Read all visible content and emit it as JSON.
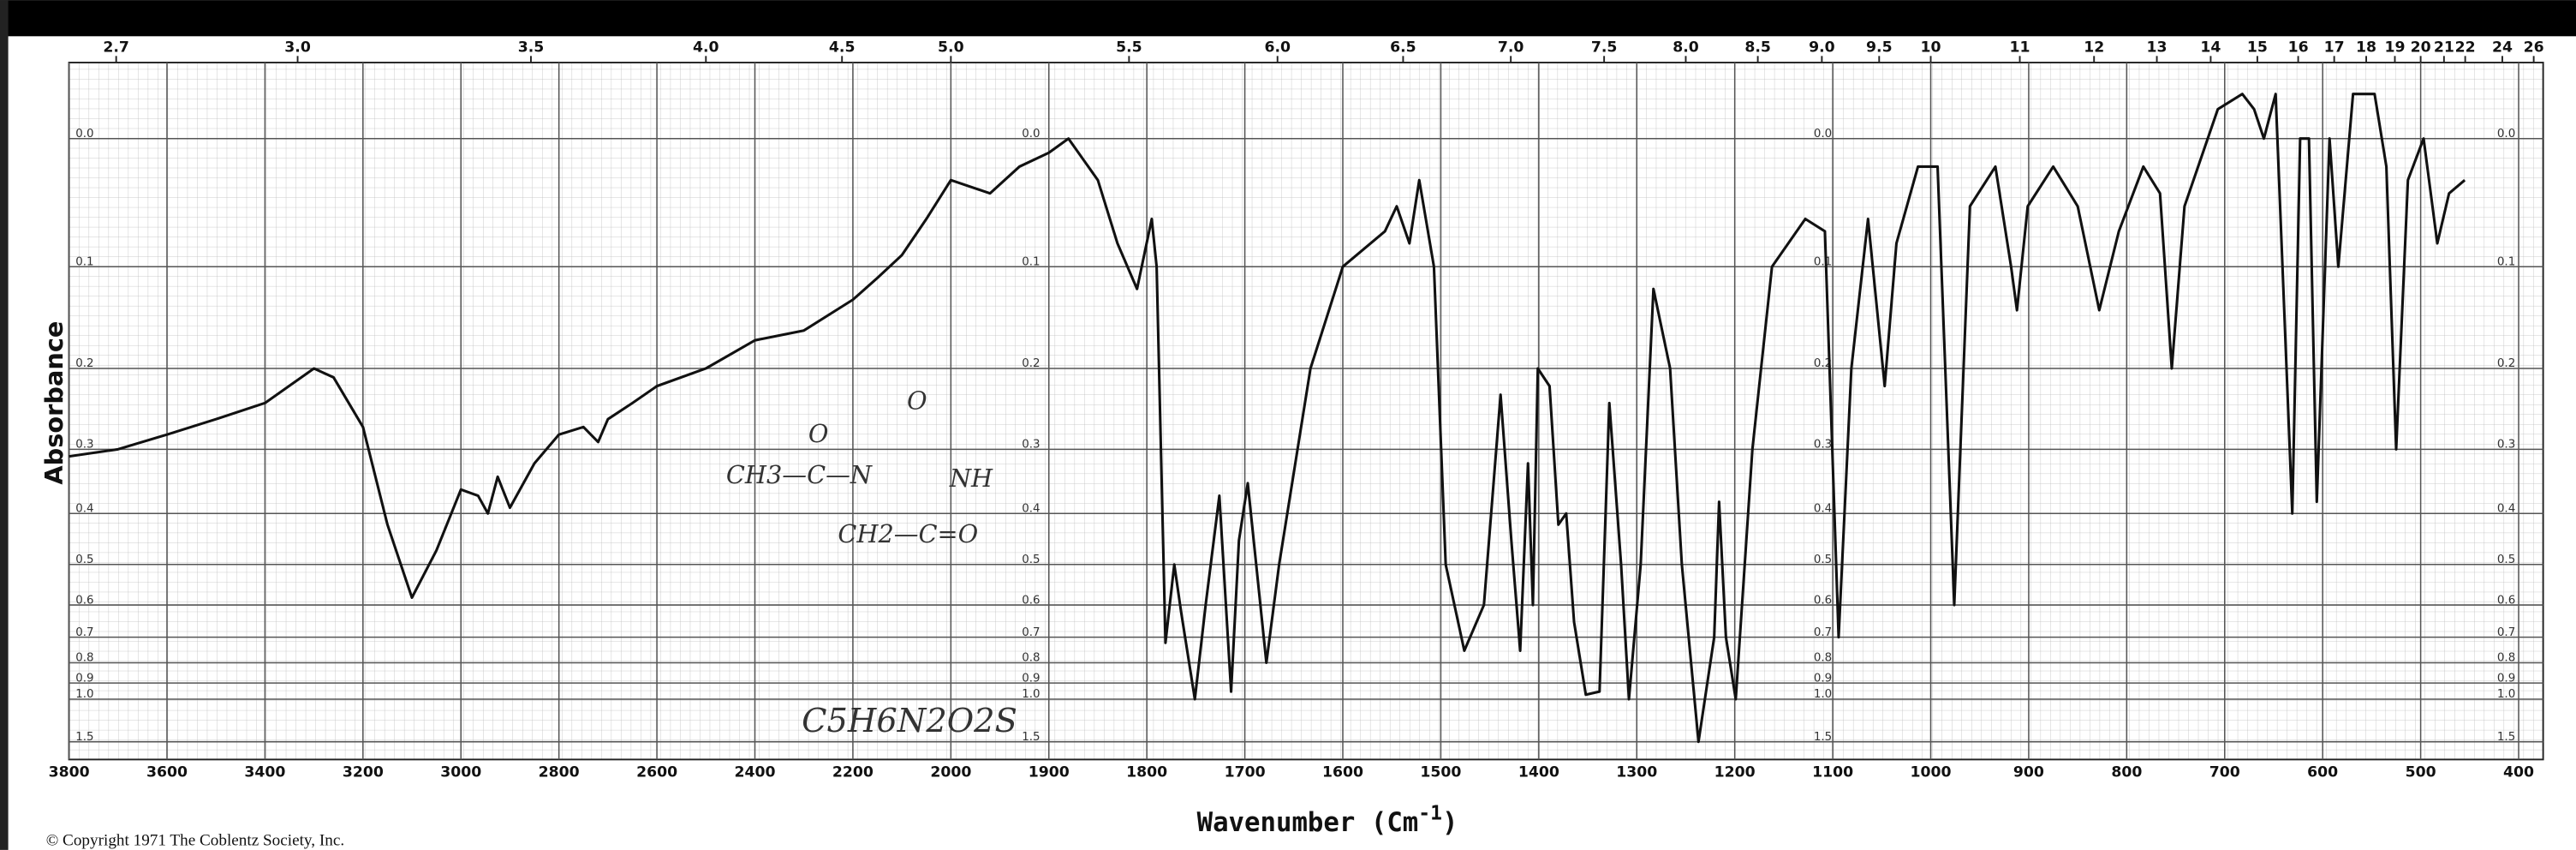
{
  "chart_data": {
    "type": "line",
    "y_label": "Absorbance",
    "x_label_parts": [
      "Wavenumber (Cm",
      "-1",
      ")"
    ],
    "copyright": "© Copyright 1971   The Coblentz Society, Inc.",
    "annotations": [
      "O",
      "CH3—C—N",
      "O",
      "NH",
      "CH2—C=O",
      "C5H6N2O2S"
    ],
    "color": "#111111",
    "y_scale": "transmittance",
    "x_scale_break": 2000,
    "x_scale_ratio": 2,
    "x2_scale": "reciprocal",
    "x2_factor": 10000,
    "xlim": [
      3800,
      375
    ],
    "ylim": [
      -0.05,
      2.5
    ],
    "xticks": [
      3800,
      3600,
      3400,
      3200,
      3000,
      2800,
      2600,
      2400,
      2200,
      2000,
      1900,
      1800,
      1700,
      1600,
      1500,
      1400,
      1300,
      1200,
      1100,
      1000,
      900,
      800,
      700,
      600,
      500,
      400
    ],
    "x2ticks": [
      2.7,
      {
        "value": 3,
        "label": "3.0"
      },
      3.5,
      {
        "value": 4,
        "label": "4.0"
      },
      4.5,
      {
        "value": 5,
        "label": "5.0"
      },
      5.5,
      {
        "value": 6,
        "label": "6.0"
      },
      6.5,
      {
        "value": 7,
        "label": "7.0"
      },
      7.5,
      {
        "value": 8,
        "label": "8.0"
      },
      8.5,
      {
        "value": 9,
        "label": "9.0"
      },
      9.5,
      10,
      11,
      12,
      13,
      14,
      15,
      16,
      17,
      18,
      19,
      20,
      21,
      22,
      24,
      26
    ],
    "yticks": [
      {
        "value": 0,
        "label": "0.0"
      },
      0.1,
      0.2,
      0.3,
      0.4,
      0.5,
      0.6,
      0.7,
      0.8,
      0.9,
      {
        "value": 1,
        "label": "1.0"
      },
      1.5
    ],
    "grid": true,
    "x": [
      3800,
      3700,
      3600,
      3500,
      3400,
      3300,
      3260,
      3200,
      3150,
      3100,
      3050,
      3000,
      2965,
      2945,
      2925,
      2900,
      2850,
      2800,
      2750,
      2720,
      2700,
      2650,
      2600,
      2500,
      2400,
      2300,
      2200,
      2150,
      2100,
      2050,
      2000,
      1960,
      1930,
      1900,
      1880,
      1850,
      1830,
      1810,
      1795,
      1790,
      1781,
      1772,
      1765,
      1751,
      1740,
      1726,
      1714,
      1706,
      1697,
      1678,
      1665,
      1633,
      1600,
      1557,
      1545,
      1532,
      1522,
      1507,
      1495,
      1476,
      1456,
      1439,
      1428,
      1419,
      1411,
      1406,
      1401,
      1389,
      1380,
      1372,
      1364,
      1352,
      1338,
      1328,
      1316,
      1308,
      1296,
      1283,
      1266,
      1254,
      1237,
      1221,
      1216,
      1209,
      1199,
      1182,
      1162,
      1128,
      1108,
      1094,
      1081,
      1064,
      1047,
      1035,
      1013,
      993,
      976,
      960,
      934,
      918,
      912,
      901,
      875,
      850,
      828,
      808,
      783,
      766,
      754,
      741,
      707,
      682,
      670,
      660,
      648,
      631,
      623,
      614,
      606,
      593,
      584,
      569,
      547,
      535,
      525,
      513,
      497,
      483,
      471,
      455
    ],
    "values": [
      0.31,
      0.3,
      0.28,
      0.26,
      0.24,
      0.2,
      0.21,
      0.27,
      0.42,
      0.58,
      0.47,
      0.36,
      0.37,
      0.4,
      0.34,
      0.39,
      0.32,
      0.28,
      0.27,
      0.29,
      0.26,
      0.24,
      0.22,
      0.2,
      0.17,
      0.16,
      0.13,
      0.11,
      0.09,
      0.06,
      0.03,
      0.04,
      0.02,
      0.01,
      0,
      0.03,
      0.08,
      0.12,
      0.06,
      0.1,
      0.72,
      0.5,
      0.62,
      1.0,
      0.6,
      0.37,
      0.95,
      0.45,
      0.35,
      0.8,
      0.5,
      0.2,
      0.1,
      0.07,
      0.05,
      0.08,
      0.03,
      0.1,
      0.5,
      0.75,
      0.6,
      0.23,
      0.45,
      0.75,
      0.32,
      0.6,
      0.2,
      0.22,
      0.42,
      0.4,
      0.65,
      0.97,
      0.95,
      0.24,
      0.5,
      1.0,
      0.5,
      0.12,
      0.2,
      0.5,
      1.5,
      0.7,
      0.38,
      0.7,
      1.0,
      0.3,
      0.1,
      0.06,
      0.07,
      0.7,
      0.2,
      0.06,
      0.22,
      0.08,
      0.02,
      0.02,
      0.6,
      0.05,
      0.02,
      0.1,
      0.14,
      0.05,
      0.02,
      0.05,
      0.14,
      0.07,
      0.02,
      0.04,
      0.2,
      0.05,
      -0.02,
      -0.03,
      -0.02,
      0,
      -0.03,
      0.4,
      0,
      0,
      0.38,
      0,
      0.1,
      -0.03,
      -0.03,
      0.02,
      0.3,
      0.03,
      0,
      0.08,
      0.04,
      0.03
    ]
  }
}
